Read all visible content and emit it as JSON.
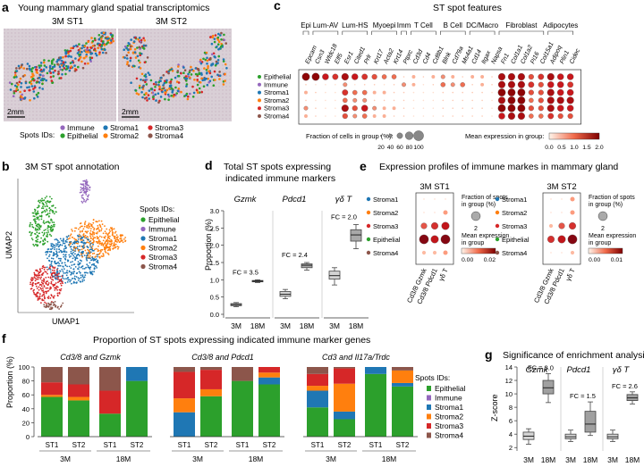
{
  "colors": {
    "Epithelial": "#2ca02c",
    "Immune": "#9467bd",
    "Stroma1": "#1f77b4",
    "Stroma2": "#ff7f0e",
    "Stroma3": "#d62728",
    "Stroma4": "#8c564b"
  },
  "panel_a": {
    "letter": "a",
    "title": "Young mammary gland spatial transcriptomics",
    "st1": "3M ST1",
    "st2": "3M ST2",
    "scale": "2mm",
    "legend_title": "Spots IDs:",
    "legend": [
      "Immune",
      "Epithelial",
      "Stroma1",
      "Stroma2",
      "Stroma3",
      "Stroma4"
    ]
  },
  "panel_b": {
    "letter": "b",
    "title": "3M ST spot annotation",
    "xlabel": "UMAP1",
    "ylabel": "UMAP2",
    "legend_title": "Spots IDs:",
    "legend": [
      "Epithelial",
      "Immune",
      "Stroma1",
      "Stroma2",
      "Stroma3",
      "Stroma4"
    ]
  },
  "panel_c": {
    "letter": "c",
    "title": "ST spot features",
    "groups": [
      {
        "name": "Epi",
        "genes": [
          "Epcam"
        ]
      },
      {
        "name": "Lum-AV",
        "genes": [
          "Csn3",
          "Wfdc18",
          "Elf5"
        ]
      },
      {
        "name": "Lum-HS",
        "genes": [
          "Esr1",
          "Cited1",
          "Prlr"
        ]
      },
      {
        "name": "Myoepi",
        "genes": [
          "Krt17",
          "Acta2",
          "Krt14"
        ]
      },
      {
        "name": "Imm",
        "genes": [
          "Ptprc"
        ]
      },
      {
        "name": "T Cell",
        "genes": [
          "Cd3d",
          "Cd4",
          "Cd8b1"
        ]
      },
      {
        "name": "B Cell",
        "genes": [
          "Blnk",
          "Cd79a",
          "Ms4a1"
        ]
      },
      {
        "name": "DC/Macro",
        "genes": [
          "Cd14",
          "Itgax",
          "Napsa"
        ]
      },
      {
        "name": "Fibroblast",
        "genes": [
          "Fn1",
          "Col1a1",
          "Col1a2",
          "Pi16",
          "Col15a1"
        ]
      },
      {
        "name": "Adipocytes",
        "genes": [
          "Adipoq",
          "Plin1",
          "Cidec"
        ]
      }
    ],
    "rows": [
      "Epithelial",
      "Immune",
      "Stroma1",
      "Stroma2",
      "Stroma3",
      "Stroma4"
    ],
    "size_legend_title": "Fraction of cells in group (%):",
    "size_legend_values": [
      "20",
      "40",
      "60",
      "80",
      "100"
    ],
    "color_legend_title": "Mean expression in group:",
    "color_legend_ticks": [
      "0.0",
      "0.5",
      "1.0",
      "1.5",
      "2.0"
    ]
  },
  "panel_d": {
    "letter": "d",
    "title_line1": "Total ST spots expressing",
    "title_line2": "indicated immune markers",
    "ylabel": "Proportion (%)",
    "yticks": [
      "0.0",
      "0.5",
      "1.0",
      "1.5",
      "2.0",
      "2.5",
      "3.0"
    ],
    "genes": [
      "Gzmk",
      "Pdcd1",
      "γδ T"
    ],
    "fc": [
      "FC = 3.5",
      "FC = 2.4",
      "FC = 2.0"
    ],
    "xlabels": [
      "3M",
      "18M"
    ]
  },
  "panel_e": {
    "letter": "e",
    "title": "Expression profiles of immune markes in mammary gland",
    "st1": "3M ST1",
    "st2": "3M ST2",
    "rows": [
      "Stroma1",
      "Stroma2",
      "Stroma3",
      "Epithelial",
      "Stroma4"
    ],
    "cols": [
      "Cd3/8 Gzmk",
      "Cd3/8 Pdcd1",
      "γδ T"
    ],
    "frac_title": "Fraction of spots in group (%)",
    "frac_value": "2",
    "mean_title": "Mean expression in group",
    "st1_ticks": [
      "0.00",
      "0.02"
    ],
    "st2_ticks": [
      "0.00",
      "0.01"
    ]
  },
  "panel_f": {
    "letter": "f",
    "title": "Proportion of ST spots expressing indicated immune marker genes",
    "ylabel": "Proportion (%)",
    "yticks": [
      "0",
      "20",
      "40",
      "60",
      "80",
      "100"
    ],
    "subtitles": [
      "Cd3/8 and Gzmk",
      "Cd3/8 and Pdcd1",
      "Cd3 and Il17a/Trdc"
    ],
    "xlabels": [
      "ST1",
      "ST2",
      "ST1",
      "ST2"
    ],
    "ages": [
      "3M",
      "18M"
    ],
    "legend_title": "Spots IDs:",
    "legend": [
      "Epithelial",
      "Immune",
      "Stroma1",
      "Stroma2",
      "Stroma3",
      "Stroma4"
    ]
  },
  "panel_g": {
    "letter": "g",
    "title": "Significance of enrichment analysis",
    "ylabel": "Z-score",
    "yticks": [
      "2",
      "4",
      "6",
      "8",
      "10",
      "12",
      "14"
    ],
    "genes": [
      "Gzmk",
      "Pdcd1",
      "γδ T"
    ],
    "fc": [
      "FC = 3.0",
      "FC = 1.5",
      "FC = 2.6"
    ],
    "xlabels": [
      "3M",
      "18M"
    ]
  },
  "chart_data": [
    {
      "type": "box",
      "title": "Total ST spots expressing indicated immune markers",
      "ylabel": "Proportion (%)",
      "ylim": [
        0,
        3.0
      ],
      "series": [
        {
          "name": "Gzmk",
          "3M": {
            "min": 0.22,
            "q1": 0.25,
            "med": 0.28,
            "q3": 0.31,
            "max": 0.34
          },
          "18M": {
            "min": 0.92,
            "q1": 0.94,
            "med": 0.96,
            "q3": 0.98,
            "max": 1.0
          }
        },
        {
          "name": "Pdcd1",
          "3M": {
            "min": 0.45,
            "q1": 0.52,
            "med": 0.58,
            "q3": 0.66,
            "max": 0.72
          },
          "18M": {
            "min": 1.28,
            "q1": 1.35,
            "med": 1.42,
            "q3": 1.46,
            "max": 1.5
          }
        },
        {
          "name": "γδ T",
          "3M": {
            "min": 0.85,
            "q1": 1.02,
            "med": 1.12,
            "q3": 1.25,
            "max": 1.35
          },
          "18M": {
            "min": 1.9,
            "q1": 2.12,
            "med": 2.3,
            "q3": 2.45,
            "max": 2.6
          }
        }
      ]
    },
    {
      "type": "stacked-bar",
      "title": "Proportion of ST spots expressing indicated immune marker genes",
      "ylabel": "Proportion (%)",
      "ylim": [
        0,
        100
      ],
      "stack_order": [
        "Epithelial",
        "Immune",
        "Stroma1",
        "Stroma2",
        "Stroma3",
        "Stroma4"
      ],
      "groups": [
        {
          "name": "Cd3/8 and Gzmk",
          "bars": [
            {
              "age": "3M",
              "sample": "ST1",
              "values": [
                57,
                0,
                0,
                3,
                18,
                22
              ]
            },
            {
              "age": "3M",
              "sample": "ST2",
              "values": [
                52,
                0,
                0,
                5,
                18,
                25
              ]
            },
            {
              "age": "18M",
              "sample": "ST1",
              "values": [
                33,
                0,
                0,
                0,
                33,
                34
              ]
            },
            {
              "age": "18M",
              "sample": "ST2",
              "values": [
                80,
                0,
                20,
                0,
                0,
                0
              ]
            }
          ]
        },
        {
          "name": "Cd3/8 and Pdcd1",
          "bars": [
            {
              "age": "3M",
              "sample": "ST1",
              "values": [
                0,
                0,
                35,
                20,
                38,
                7
              ]
            },
            {
              "age": "3M",
              "sample": "ST2",
              "values": [
                58,
                0,
                0,
                10,
                28,
                4
              ]
            },
            {
              "age": "18M",
              "sample": "ST1",
              "values": [
                80,
                0,
                0,
                0,
                0,
                20
              ]
            },
            {
              "age": "18M",
              "sample": "ST2",
              "values": [
                75,
                0,
                10,
                7,
                8,
                0
              ]
            }
          ]
        },
        {
          "name": "Cd3 and Il17a/Trdc",
          "bars": [
            {
              "age": "3M",
              "sample": "ST1",
              "values": [
                42,
                0,
                24,
                7,
                17,
                10
              ]
            },
            {
              "age": "3M",
              "sample": "ST2",
              "values": [
                25,
                0,
                11,
                40,
                22,
                2
              ]
            },
            {
              "age": "18M",
              "sample": "ST1",
              "values": [
                90,
                0,
                10,
                0,
                0,
                0
              ]
            },
            {
              "age": "18M",
              "sample": "ST2",
              "values": [
                72,
                0,
                5,
                18,
                0,
                5
              ]
            }
          ]
        }
      ]
    },
    {
      "type": "box",
      "title": "Significance of enrichment analysis",
      "ylabel": "Z-score",
      "ylim": [
        1.5,
        14
      ],
      "series": [
        {
          "name": "Gzmk",
          "3M": {
            "min": 2.5,
            "q1": 3.2,
            "med": 3.7,
            "q3": 4.3,
            "max": 4.8
          },
          "18M": {
            "min": 8.7,
            "q1": 10.0,
            "med": 10.9,
            "q3": 12.0,
            "max": 13.0
          }
        },
        {
          "name": "Pdcd1",
          "3M": {
            "min": 2.9,
            "q1": 3.3,
            "med": 3.6,
            "q3": 4.0,
            "max": 4.6
          },
          "18M": {
            "min": 3.8,
            "q1": 4.3,
            "med": 5.5,
            "q3": 7.4,
            "max": 8.8
          }
        },
        {
          "name": "γδ T",
          "3M": {
            "min": 2.9,
            "q1": 3.3,
            "med": 3.6,
            "q3": 4.0,
            "max": 4.6
          },
          "18M": {
            "min": 8.5,
            "q1": 9.0,
            "med": 9.4,
            "q3": 9.9,
            "max": 10.3
          }
        }
      ]
    }
  ]
}
